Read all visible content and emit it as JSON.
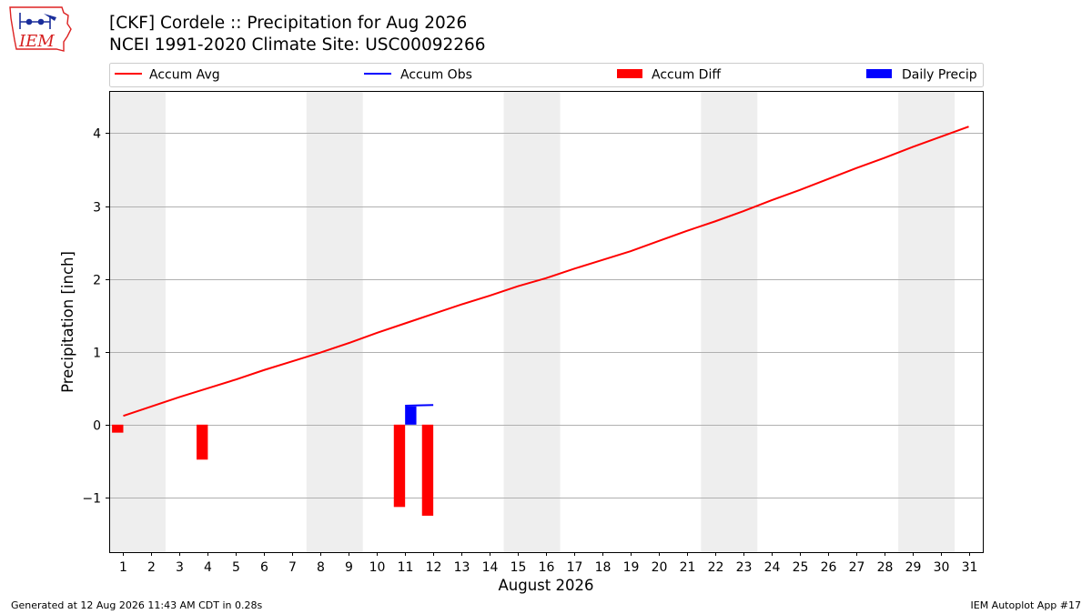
{
  "header": {
    "logo_text": "IEM",
    "title_line1": "[CKF] Cordele :: Precipitation for Aug 2026",
    "title_line2": "NCEI 1991-2020 Climate Site: USC00092266"
  },
  "footer": {
    "generated": "Generated at 12 Aug 2026 11:43 AM CDT in 0.28s",
    "app": "IEM Autoplot App #17"
  },
  "colors": {
    "accum_avg": "#ff0000",
    "accum_obs": "#0000ff",
    "accum_diff": "#ff0000",
    "daily_precip": "#0000ff",
    "weekend_band": "#eeeeee",
    "grid": "#b0b0b0"
  },
  "chart_data": {
    "type": "bar",
    "xlabel": "August 2026",
    "ylabel": "Precipitation [inch]",
    "x": [
      1,
      2,
      3,
      4,
      5,
      6,
      7,
      8,
      9,
      10,
      11,
      12,
      13,
      14,
      15,
      16,
      17,
      18,
      19,
      20,
      21,
      22,
      23,
      24,
      25,
      26,
      27,
      28,
      29,
      30,
      31
    ],
    "xlim": [
      0.5,
      31.5
    ],
    "ylim": [
      -1.75,
      4.58
    ],
    "yticks": [
      -1,
      0,
      1,
      2,
      3,
      4
    ],
    "ytick_labels": [
      "−1",
      "0",
      "1",
      "2",
      "3",
      "4"
    ],
    "grid": "horizontal",
    "legend_position": "top",
    "weekend_bands": [
      [
        0.5,
        2.5
      ],
      [
        7.5,
        9.5
      ],
      [
        14.5,
        16.5
      ],
      [
        21.5,
        23.5
      ],
      [
        28.5,
        30.5
      ]
    ],
    "legend": [
      "Accum Avg",
      "Accum Obs",
      "Accum Diff",
      "Daily Precip"
    ],
    "series": [
      {
        "name": "Accum Avg",
        "type": "line",
        "x": [
          1,
          2,
          3,
          4,
          5,
          6,
          7,
          8,
          9,
          10,
          11,
          12,
          13,
          14,
          15,
          16,
          17,
          18,
          19,
          20,
          21,
          22,
          23,
          24,
          25,
          26,
          27,
          28,
          29,
          30,
          31
        ],
        "values": [
          0.12,
          0.25,
          0.38,
          0.5,
          0.62,
          0.75,
          0.87,
          0.99,
          1.12,
          1.26,
          1.39,
          1.52,
          1.65,
          1.77,
          1.9,
          2.01,
          2.14,
          2.26,
          2.38,
          2.52,
          2.66,
          2.79,
          2.93,
          3.08,
          3.22,
          3.37,
          3.52,
          3.66,
          3.81,
          3.95,
          4.09
        ]
      },
      {
        "name": "Accum Obs",
        "type": "line",
        "x": [
          11,
          12
        ],
        "values": [
          0.26,
          0.27
        ]
      },
      {
        "name": "Accum Diff",
        "type": "bar",
        "x": [
          1,
          4,
          11,
          12
        ],
        "values": [
          -0.11,
          -0.48,
          -1.13,
          -1.25
        ]
      },
      {
        "name": "Daily Precip",
        "type": "bar",
        "x": [
          11
        ],
        "values": [
          0.25
        ]
      }
    ]
  }
}
